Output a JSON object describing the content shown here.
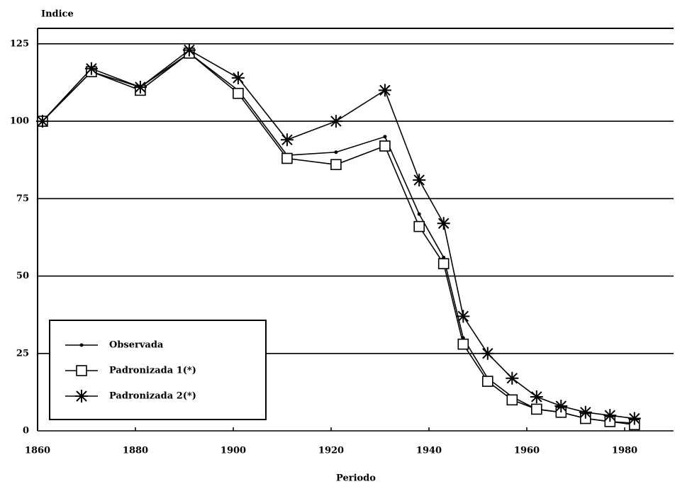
{
  "chart_data": {
    "type": "line",
    "ylabel": "Indice",
    "xlabel": "Periodo",
    "x": [
      1861,
      1871,
      1881,
      1891,
      1901,
      1911,
      1921,
      1931,
      1938,
      1943,
      1947,
      1952,
      1957,
      1962,
      1967,
      1972,
      1977,
      1982
    ],
    "series": [
      {
        "name": "Observada",
        "color": "#000000",
        "marker": "dot",
        "values": [
          100,
          116,
          111,
          122,
          110,
          89,
          90,
          95,
          70,
          56,
          30,
          17,
          11,
          7,
          6,
          4,
          3,
          2.5
        ]
      },
      {
        "name": "Padronizada 1(*)",
        "color": "#000000",
        "marker": "square",
        "values": [
          100,
          116,
          110,
          122,
          109,
          88,
          86,
          92,
          66,
          54,
          28,
          16,
          10,
          7,
          6,
          4,
          3,
          2
        ]
      },
      {
        "name": "Padronizada 2(*)",
        "color": "#000000",
        "marker": "asterisk",
        "values": [
          100,
          117,
          111,
          123,
          114,
          94,
          100,
          110,
          81,
          67,
          37,
          25,
          17,
          11,
          8,
          6,
          5,
          4
        ]
      }
    ],
    "xlim": [
      1860,
      1990
    ],
    "xticks": [
      1860,
      1880,
      1900,
      1920,
      1940,
      1960,
      1980
    ],
    "ylim": [
      0,
      130
    ],
    "yticks": [
      0,
      25,
      50,
      75,
      100,
      125
    ],
    "grid": true,
    "legend": "lower left"
  }
}
